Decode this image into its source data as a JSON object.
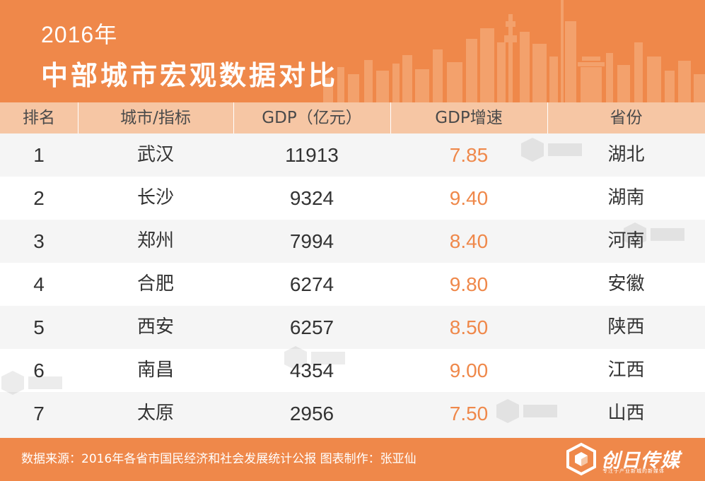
{
  "header": {
    "year": "2016年",
    "title": "中部城市宏观数据对比"
  },
  "columns": [
    "排名",
    "城市/指标",
    "GDP（亿元）",
    "GDP增速",
    "省份"
  ],
  "rows": [
    {
      "rank": "1",
      "city": "武汉",
      "gdp": "11913",
      "growth": "7.85",
      "province": "湖北"
    },
    {
      "rank": "2",
      "city": "长沙",
      "gdp": "9324",
      "growth": "9.40",
      "province": "湖南"
    },
    {
      "rank": "3",
      "city": "郑州",
      "gdp": "7994",
      "growth": "8.40",
      "province": "河南"
    },
    {
      "rank": "4",
      "city": "合肥",
      "gdp": "6274",
      "growth": "9.80",
      "province": "安徽"
    },
    {
      "rank": "5",
      "city": "西安",
      "gdp": "6257",
      "growth": "8.50",
      "province": "陕西"
    },
    {
      "rank": "6",
      "city": "南昌",
      "gdp": "4354",
      "growth": "9.00",
      "province": "江西"
    },
    {
      "rank": "7",
      "city": "太原",
      "gdp": "2956",
      "growth": "7.50",
      "province": "山西"
    }
  ],
  "footer": {
    "source": "数据来源：2016年各省市国民经济和社会发展统计公报  图表制作：张亚仙",
    "logo_text": "创日传媒",
    "logo_sub": "专注于产业新城的新媒体"
  },
  "colors": {
    "accent": "#ef884a",
    "header_row": "#f6c6a4",
    "stripe": "#f5f5f5"
  }
}
